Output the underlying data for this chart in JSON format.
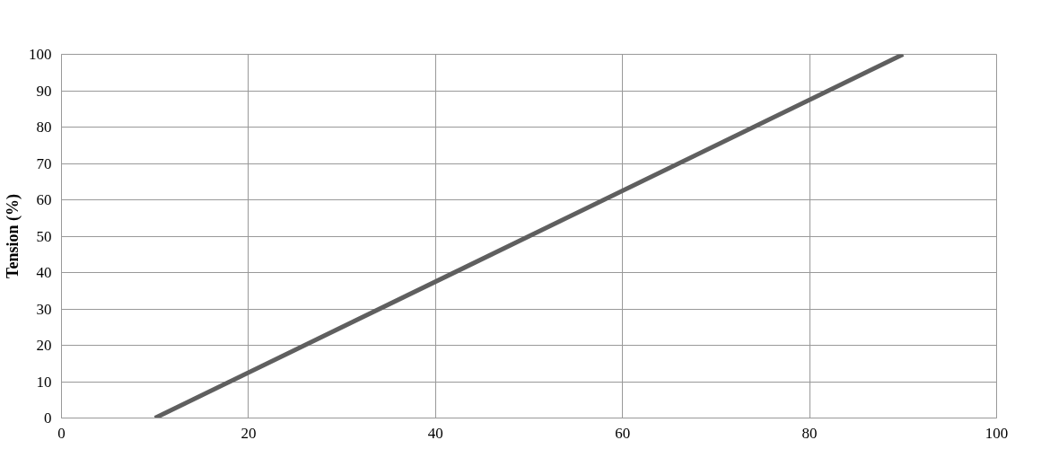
{
  "chart_data": {
    "type": "line",
    "ylabel": "Tension (%)",
    "x": [
      10,
      90
    ],
    "series": [
      {
        "color": "#5f5f5f",
        "values": [
          0,
          100
        ]
      }
    ],
    "xlim": [
      0,
      100
    ],
    "xticks": [
      0,
      20,
      40,
      60,
      80,
      100
    ],
    "ylim": [
      0,
      100
    ],
    "yticks": [
      0,
      10,
      20,
      30,
      40,
      50,
      60,
      70,
      80,
      90,
      100
    ],
    "grid": true,
    "marker": "none",
    "line_style": "solid"
  }
}
